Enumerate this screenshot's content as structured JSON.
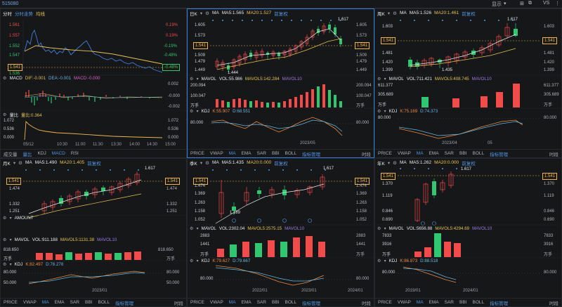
{
  "app": {
    "code": "515080",
    "display_label": "显示",
    "vs_label": "VS",
    "window_icons": [
      "grid-icon",
      "min-icon",
      "max-icon",
      "close-icon"
    ]
  },
  "colors": {
    "up": "#f34a4a",
    "down": "#2fc870",
    "ma5": "#e8e8e8",
    "ma20": "#e8c24d",
    "accent": "#2f7fe0"
  },
  "intraday": {
    "tabs": [
      "分时",
      "分时走势",
      "均线"
    ],
    "y_left": [
      "1.561",
      "1.557",
      "1.552",
      "1.547",
      "1.541",
      "1.536"
    ],
    "y_right": [
      "0.19%",
      "0.19%",
      "-0.19%",
      "-0.48%",
      "-0.48%",
      "-0.90%"
    ],
    "macd": {
      "label": "MACD",
      "dif": "DIF:-0.001",
      "dea": "DEA:-0.001",
      "macd": "MACD:-0.000",
      "axis": [
        "0.002",
        "-0.000",
        "-0.002"
      ]
    },
    "ratio": {
      "label": "量比",
      "val": "量比:0.364",
      "axis": [
        "1.072",
        "0.536",
        "0.000"
      ],
      "left_axis": [
        "1.072",
        "0.536",
        "0.000"
      ]
    },
    "times": [
      "05/12",
      "10:30",
      "11:00",
      "11:30",
      "13:30",
      "14:00",
      "14:30",
      "15:00"
    ],
    "bottom_tabs": [
      "成交量",
      "量比",
      "KDJ",
      "MACD",
      "RSI"
    ]
  },
  "panels": [
    {
      "id": "daily",
      "period": "日K",
      "ma5": "MA5:1.565",
      "ma20": "MA20:1.527",
      "adj": "前复权",
      "axis": [
        "1.605",
        "1.573",
        "1.541",
        "1.509",
        "1.479",
        "1.449"
      ],
      "left_axis": [
        "1.605",
        "1.573",
        "1.541",
        "1.509",
        "1.479",
        "1.449"
      ],
      "hi": "1.617",
      "lo": "1.444",
      "price": "1.541",
      "vol": {
        "label": "MAVOL",
        "v": "VOL:55.986",
        "ma5": "MAVOL5:142.284",
        "ma10": "MAVOL10",
        "axis": [
          "200.094",
          "100.047",
          "万手"
        ],
        "left_axis": [
          "200.094",
          "100.047",
          "万手"
        ]
      },
      "kdj": {
        "label": "KDJ",
        "k": "K:55.907",
        "d": "D:68.551",
        "axis": [
          "80.000",
          ""
        ],
        "left_axis": [
          "80.000"
        ]
      },
      "date": "2023/05",
      "tabs": [
        "PRICE",
        "VWAP",
        "MA",
        "EMA",
        "SAR",
        "BBI",
        "BOLL",
        "指标管理",
        "时段"
      ]
    },
    {
      "id": "weekly",
      "period": "周K",
      "ma5": "MA5:1.526",
      "ma20": "MA20:1.461",
      "adj": "前复权",
      "axis": [
        "1.603",
        "1.541",
        "1.481",
        "1.420",
        "1.399"
      ],
      "left_axis": [
        "1.603",
        "1.541",
        "1.481",
        "1.420",
        "1.399"
      ],
      "hi": "1.617",
      "lo": "1.435",
      "price": "1.541",
      "vol": {
        "label": "MAVOL",
        "v": "VOL:711.421",
        "ma5": "MAVOL5:408.745",
        "ma10": "MAVOL10",
        "axis": [
          "611.377",
          "305.689",
          "万手"
        ],
        "left_axis": [
          "611.377",
          "305.689",
          "万手"
        ]
      },
      "kdj": {
        "label": "KDJ",
        "k": "K:75.169",
        "d": "D:74.373",
        "axis": [
          "80.000"
        ],
        "left_axis": [
          "80.000"
        ]
      },
      "dates": [
        "2023/04",
        "05"
      ],
      "tabs": [
        "PRICE",
        "VWAP",
        "MA",
        "EMA",
        "SAR",
        "BBI",
        "BOLL",
        "指标管理",
        "时段"
      ]
    },
    {
      "id": "monthly",
      "period": "月K",
      "ma5": "MA5:1.490",
      "ma20": "MA20:1.405",
      "adj": "前复权",
      "axis": [
        "1.541",
        "1.474",
        "1.332",
        "1.251"
      ],
      "left_axis": [
        "1.541",
        "1.474",
        "1.332",
        "1.251"
      ],
      "hi": "1.617",
      "price": "1.541",
      "vol": {
        "label": "MAVOL",
        "v": "VOL:911.188",
        "ma5": "MAVOL5:1131.38",
        "ma10": "MAVOL10",
        "axis": [
          "818.650",
          "万手"
        ],
        "left_axis": [
          "818.650",
          "万手"
        ]
      },
      "amount": "AMOUNT",
      "kdj": {
        "label": "KDJ",
        "k": "K:82.497",
        "d": "D:78.278",
        "axis": [
          "80.000",
          "50.000"
        ],
        "left_axis": [
          "80.000",
          "50.000"
        ]
      },
      "date": "2023/01",
      "tabs": [
        "PRICE",
        "VWAP",
        "MA",
        "EMA",
        "SAR",
        "BBI",
        "BOLL",
        "指标管理",
        "时段"
      ]
    },
    {
      "id": "quarterly",
      "period": "季K",
      "ma5": "MA5:1.435",
      "ma20": "MA20:0.000",
      "adj": "前复权",
      "axis": [
        "1.541",
        "1.474",
        "1.369",
        "1.263",
        "1.158",
        "1.052"
      ],
      "left_axis": [
        "1.541",
        "1.474",
        "1.369",
        "1.263",
        "1.158",
        "1.052"
      ],
      "hi": "1.617",
      "lo": "1.189",
      "price": "1.541",
      "vol": {
        "label": "MAVOL",
        "v": "VOL:2302.04",
        "ma5": "MAVOL5:2575.15",
        "ma10": "MAVOL10",
        "axis": [
          "2883",
          "1441",
          "万手"
        ],
        "left_axis": [
          "2883",
          "1441",
          "万手"
        ]
      },
      "kdj": {
        "label": "KDJ",
        "k": "K:79.627",
        "d": "D:79.667",
        "axis": [
          "80.000"
        ],
        "left_axis": [
          "80.000"
        ]
      },
      "dates": [
        "2022/01",
        "2023/01",
        "2024/01"
      ],
      "tabs": [
        "PRICE",
        "VWAP",
        "MA",
        "EMA",
        "SAR",
        "BBI",
        "BOLL",
        "指标管理",
        "时段"
      ]
    },
    {
      "id": "yearly",
      "period": "年K",
      "ma5": "MA5:1.262",
      "ma20": "MA20:0.000",
      "adj": "前复权",
      "axis": [
        "1.541",
        "1.370",
        "1.119",
        "0.846",
        "0.690"
      ],
      "left_axis": [
        "1.541",
        "1.370",
        "1.119",
        "0.846",
        "0.690"
      ],
      "hi": "1.617",
      "price": "1.541",
      "vol": {
        "label": "MAVOL",
        "v": "VOL:5656.88",
        "ma5": "MAVOL5:4294.69",
        "ma10": "MAVOL10",
        "axis": [
          "7833",
          "3916",
          "万手"
        ],
        "left_axis": [
          "7833",
          "3916",
          "万手"
        ]
      },
      "kdj": {
        "label": "KDJ",
        "k": "K:86.873",
        "d": "D:88.518",
        "axis": [
          "80.000"
        ],
        "left_axis": [
          "80.000"
        ]
      },
      "dates": [
        "2019/01",
        "2024/01"
      ],
      "tabs": [
        "PRICE",
        "VWAP",
        "MA",
        "EMA",
        "SAR",
        "BBI",
        "BOLL",
        "指标管理",
        "时段"
      ]
    }
  ]
}
